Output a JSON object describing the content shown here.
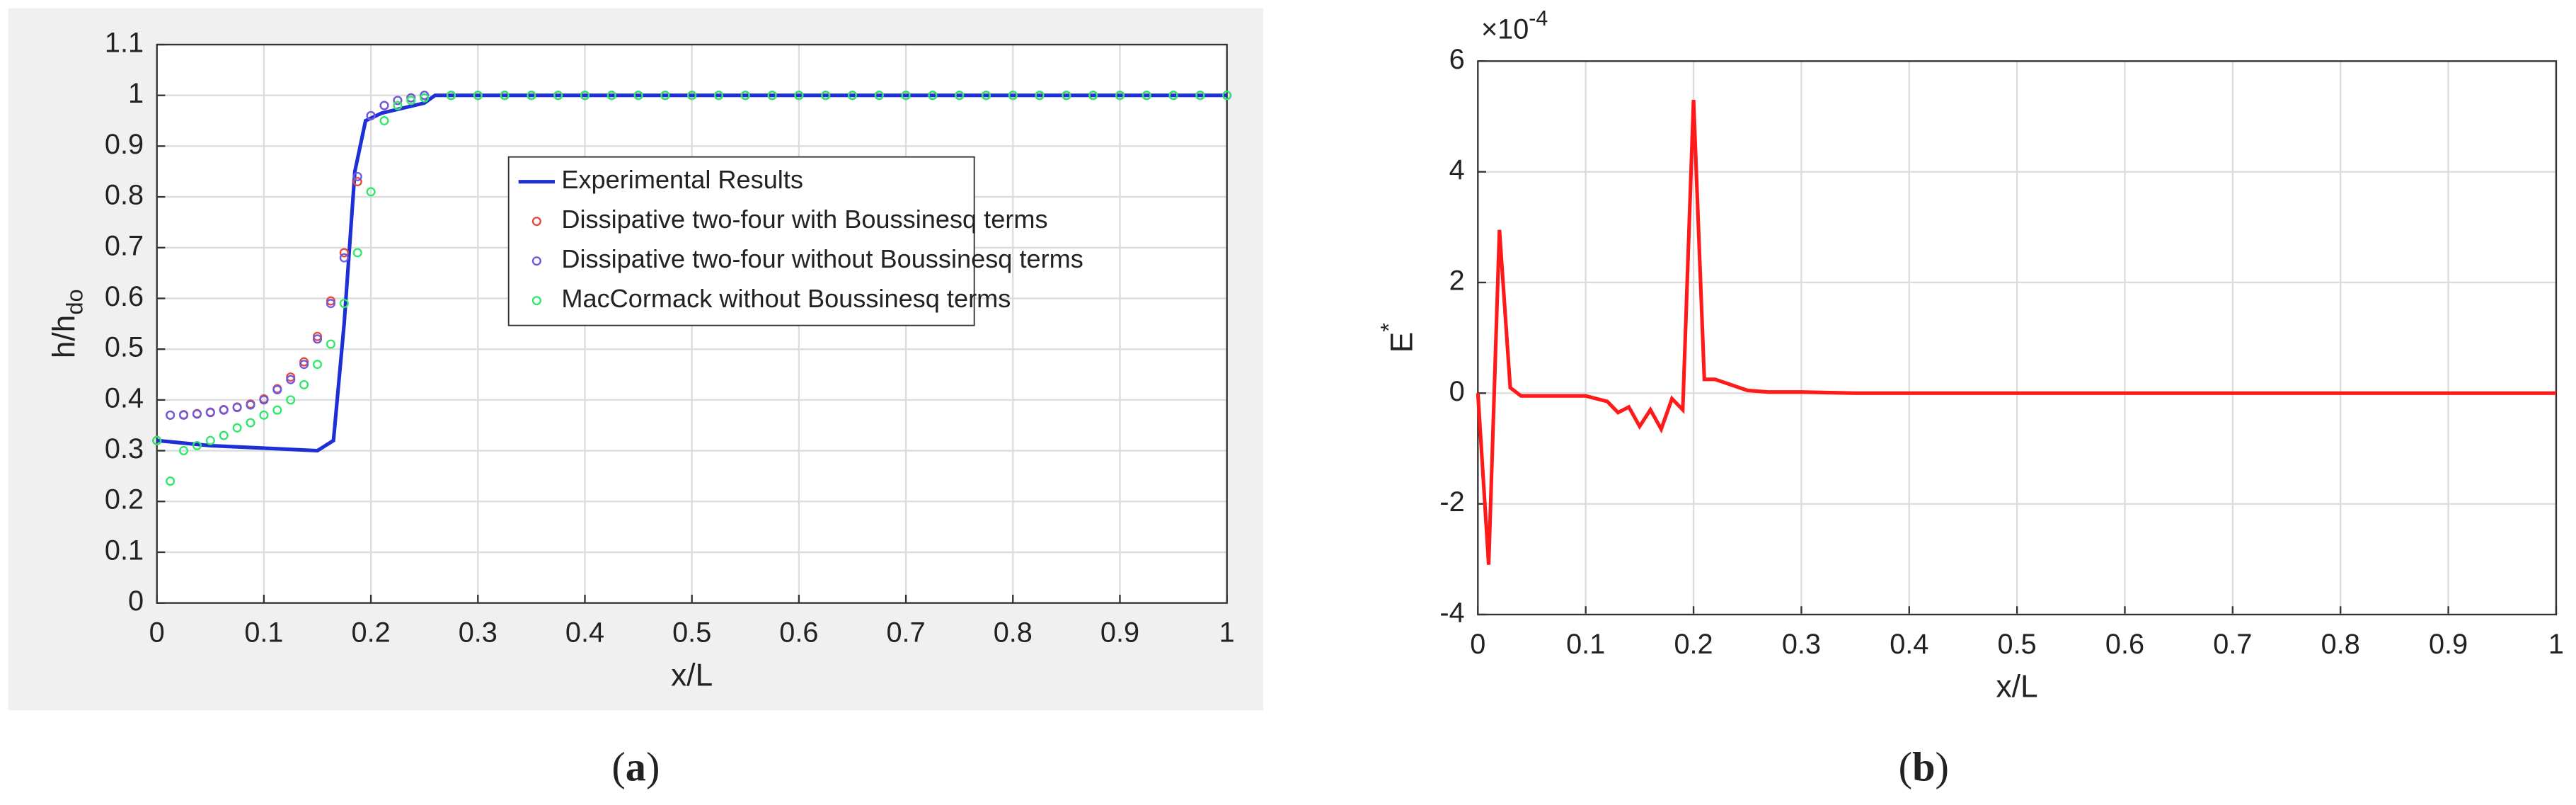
{
  "chart_data": [
    {
      "type": "line",
      "caption": [
        "(",
        "a",
        ")"
      ],
      "xlabel": "x/L",
      "ylabel": "h/h",
      "ylabel_subscript": "do",
      "xlim": [
        0,
        1
      ],
      "ylim": [
        0,
        1.1
      ],
      "xticks": [
        0,
        0.1,
        0.2,
        0.3,
        0.4,
        0.5,
        0.6,
        0.7,
        0.8,
        0.9,
        1
      ],
      "yticks": [
        0,
        0.1,
        0.2,
        0.3,
        0.4,
        0.5,
        0.6,
        0.7,
        0.8,
        0.9,
        1,
        1.1
      ],
      "grid": true,
      "legend": "upper center",
      "x": [
        0,
        0.0125,
        0.025,
        0.0375,
        0.05,
        0.0625,
        0.075,
        0.0875,
        0.1,
        0.1125,
        0.125,
        0.1375,
        0.15,
        0.1625,
        0.175,
        0.1875,
        0.2,
        0.2125,
        0.225,
        0.2375,
        0.25,
        0.275,
        0.3,
        0.325,
        0.35,
        0.375,
        0.4,
        0.425,
        0.45,
        0.475,
        0.5,
        0.525,
        0.55,
        0.575,
        0.6,
        0.625,
        0.65,
        0.675,
        0.7,
        0.725,
        0.75,
        0.775,
        0.8,
        0.825,
        0.85,
        0.875,
        0.9,
        0.925,
        0.95,
        0.975,
        1
      ],
      "series": [
        {
          "name": "Experimental Results",
          "color": "#1f2fd6",
          "style": "line",
          "x": [
            0,
            0.05,
            0.1,
            0.15,
            0.165,
            0.175,
            0.185,
            0.195,
            0.21,
            0.25,
            0.26,
            0.27,
            1
          ],
          "values": [
            0.32,
            0.31,
            0.305,
            0.3,
            0.32,
            0.55,
            0.85,
            0.95,
            0.965,
            0.985,
            1,
            1,
            1
          ]
        },
        {
          "name": "Dissipative two-four with Boussinesq terms",
          "color": "#e8483c",
          "style": "markers",
          "values": [
            0.32,
            0.37,
            0.371,
            0.373,
            0.376,
            0.381,
            0.386,
            0.392,
            0.402,
            0.422,
            0.445,
            0.475,
            0.525,
            0.595,
            0.69,
            0.83,
            0.96,
            0.98,
            0.99,
            0.995,
            1,
            1,
            1,
            1,
            1,
            1,
            1,
            1,
            1,
            1,
            1,
            1,
            1,
            1,
            1,
            1,
            1,
            1,
            1,
            1,
            1,
            1,
            1,
            1,
            1,
            1,
            1,
            1,
            1,
            1,
            1
          ]
        },
        {
          "name": "Dissipative two-four without Boussinesq terms",
          "color": "#6a5ce0",
          "style": "markers",
          "values": [
            0.32,
            0.37,
            0.37,
            0.372,
            0.375,
            0.38,
            0.385,
            0.39,
            0.4,
            0.42,
            0.44,
            0.47,
            0.52,
            0.59,
            0.68,
            0.84,
            0.96,
            0.98,
            0.99,
            0.995,
            1,
            1,
            1,
            1,
            1,
            1,
            1,
            1,
            1,
            1,
            1,
            1,
            1,
            1,
            1,
            1,
            1,
            1,
            1,
            1,
            1,
            1,
            1,
            1,
            1,
            1,
            1,
            1,
            1,
            1,
            1
          ]
        },
        {
          "name": "MacCormack without Boussinesq terms",
          "color": "#2ee86a",
          "style": "markers",
          "values": [
            0.32,
            0.24,
            0.3,
            0.31,
            0.32,
            0.33,
            0.345,
            0.355,
            0.37,
            0.38,
            0.4,
            0.43,
            0.47,
            0.51,
            0.59,
            0.69,
            0.81,
            0.95,
            0.98,
            0.99,
            0.995,
            1,
            1,
            1,
            1,
            1,
            1,
            1,
            1,
            1,
            1,
            1,
            1,
            1,
            1,
            1,
            1,
            1,
            1,
            1,
            1,
            1,
            1,
            1,
            1,
            1,
            1,
            1,
            1,
            1,
            1
          ]
        }
      ]
    },
    {
      "type": "line",
      "caption": [
        "(",
        "b",
        ")"
      ],
      "xlabel": "x/L",
      "ylabel": "E",
      "ylabel_superscript": "*",
      "y_multiplier": "×10",
      "y_multiplier_exponent": "-4",
      "xlim": [
        0,
        1
      ],
      "ylim": [
        -4,
        6
      ],
      "xticks": [
        0,
        0.1,
        0.2,
        0.3,
        0.4,
        0.5,
        0.6,
        0.7,
        0.8,
        0.9,
        1
      ],
      "yticks": [
        -4,
        -2,
        0,
        2,
        4,
        6
      ],
      "grid": true,
      "series": [
        {
          "color": "#ff1a1a",
          "style": "line",
          "x": [
            0,
            0.01,
            0.02,
            0.03,
            0.04,
            0.05,
            0.1,
            0.12,
            0.13,
            0.14,
            0.15,
            0.16,
            0.17,
            0.18,
            0.19,
            0.2,
            0.21,
            0.22,
            0.25,
            0.27,
            0.3,
            0.35,
            1
          ],
          "values": [
            0,
            -3.1,
            2.95,
            0.1,
            -0.05,
            -0.05,
            -0.05,
            -0.15,
            -0.35,
            -0.25,
            -0.6,
            -0.3,
            -0.65,
            -0.1,
            -0.3,
            5.3,
            0.25,
            0.25,
            0.05,
            0.02,
            0.02,
            0,
            0
          ]
        }
      ]
    }
  ]
}
